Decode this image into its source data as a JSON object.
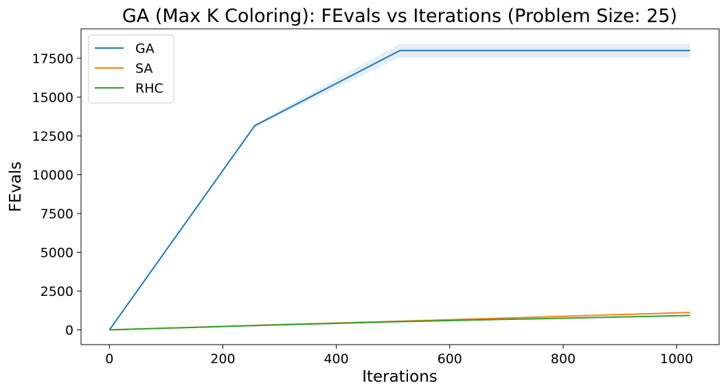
{
  "chart_data": {
    "type": "line",
    "title": "GA (Max K Coloring): FEvals vs Iterations (Problem Size: 25)",
    "xlabel": "Iterations",
    "ylabel": "FEvals",
    "xlim": [
      -50,
      1075
    ],
    "ylim": [
      -950,
      19400
    ],
    "xticks": [
      0,
      200,
      400,
      600,
      800,
      1000
    ],
    "yticks": [
      0,
      2500,
      5000,
      7500,
      10000,
      12500,
      15000,
      17500
    ],
    "grid": false,
    "legend_position": "top-left",
    "series": [
      {
        "name": "GA",
        "color": "#1f77b4",
        "x": [
          0,
          256,
          512,
          1024
        ],
        "y": [
          0,
          13150,
          18000,
          18000
        ],
        "band_low": [
          0,
          13050,
          17550,
          17550
        ],
        "band_high": [
          0,
          13250,
          18450,
          18450
        ]
      },
      {
        "name": "SA",
        "color": "#ff7f0e",
        "x": [
          0,
          256,
          512,
          1024
        ],
        "y": [
          0,
          290,
          560,
          1120
        ]
      },
      {
        "name": "RHC",
        "color": "#2ca02c",
        "x": [
          0,
          256,
          512,
          1024
        ],
        "y": [
          0,
          280,
          530,
          930
        ]
      }
    ]
  }
}
